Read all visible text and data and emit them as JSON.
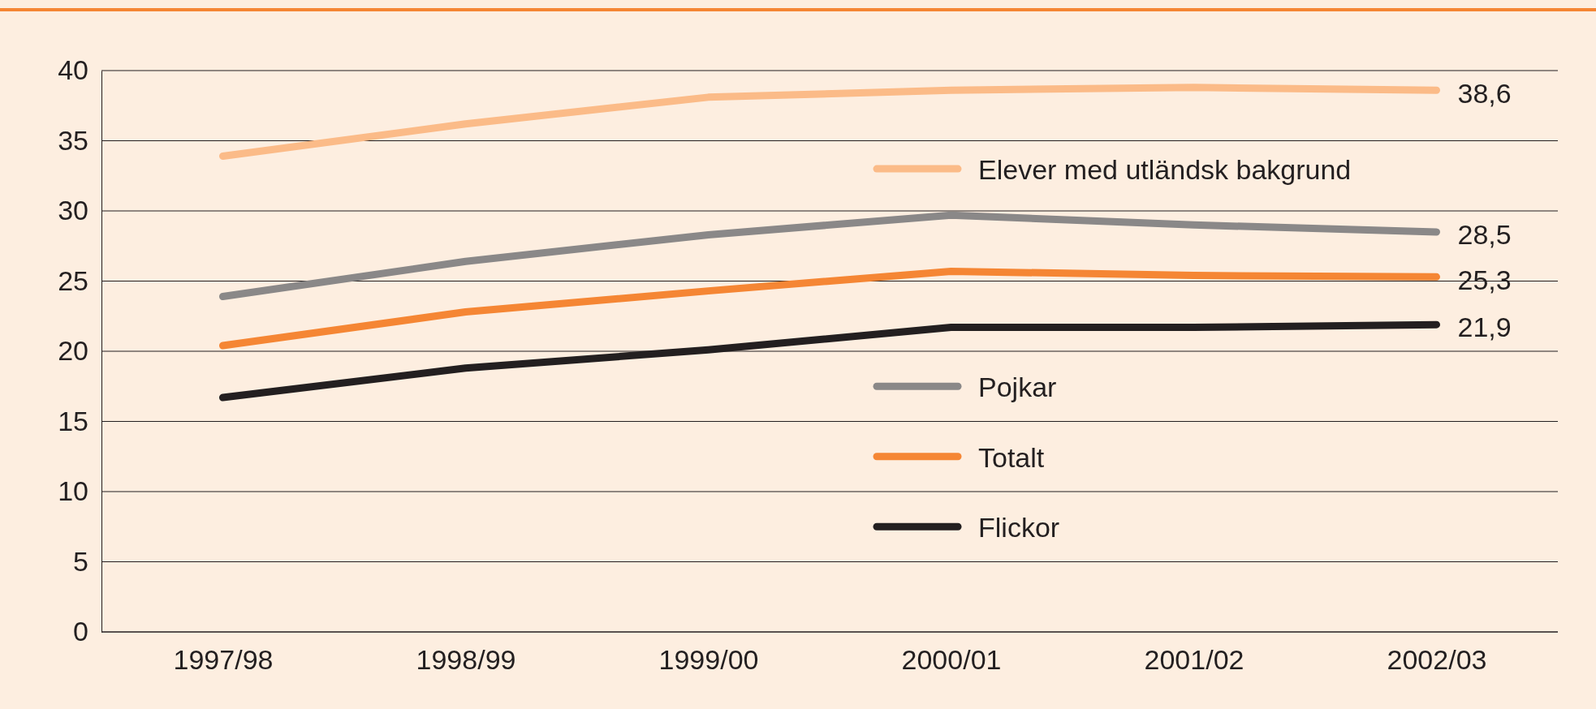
{
  "chart_data": {
    "type": "line",
    "categories": [
      "1997/98",
      "1998/99",
      "1999/00",
      "2000/01",
      "2001/02",
      "2002/03"
    ],
    "series": [
      {
        "name": "Elever med utländsk bakgrund",
        "color": "#fbbb88",
        "values": [
          33.9,
          36.2,
          38.1,
          38.6,
          38.8,
          38.6
        ],
        "value_labels": [
          null,
          null,
          null,
          null,
          null,
          "38,6"
        ]
      },
      {
        "name": "Pojkar",
        "color": "#8a8888",
        "values": [
          23.9,
          26.4,
          28.3,
          29.7,
          29.0,
          28.5
        ],
        "value_labels": [
          null,
          null,
          null,
          null,
          null,
          "28,5"
        ]
      },
      {
        "name": "Totalt",
        "color": "#f58634",
        "values": [
          20.4,
          22.8,
          24.3,
          25.7,
          25.4,
          25.3
        ],
        "value_labels": [
          null,
          null,
          null,
          null,
          null,
          "25,3"
        ]
      },
      {
        "name": "Flickor",
        "color": "#231f20",
        "values": [
          16.7,
          18.8,
          20.1,
          21.7,
          21.7,
          21.9
        ],
        "value_labels": [
          null,
          null,
          null,
          null,
          null,
          "21,9"
        ]
      }
    ],
    "ylim": [
      0,
      40
    ],
    "yticks": [
      0,
      5,
      10,
      15,
      20,
      25,
      30,
      35,
      40
    ],
    "grid": "y",
    "legend": "right",
    "marker": "none",
    "line_style": "solid"
  }
}
